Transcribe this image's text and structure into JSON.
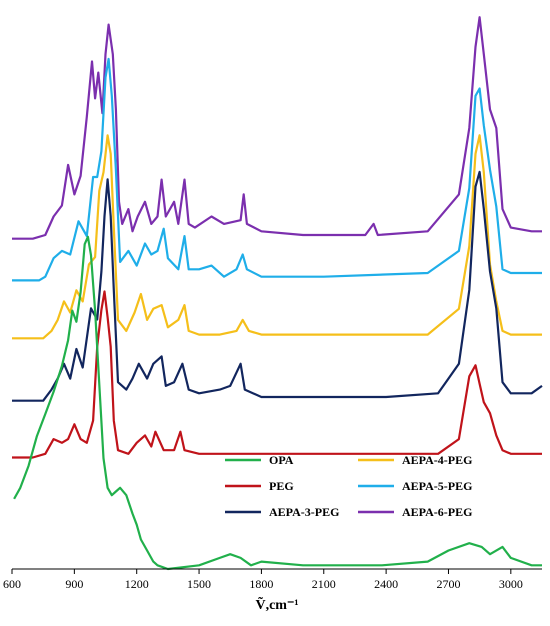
{
  "chart_data": {
    "type": "line",
    "title": "",
    "xlabel": "Ṽ,cm⁻¹",
    "ylabel": "",
    "xlim": [
      600,
      3150
    ],
    "x_ticks": [
      600,
      900,
      1200,
      1500,
      1800,
      2100,
      2400,
      2700,
      3000
    ],
    "y_axis_visible": false,
    "grid": false,
    "stacked_offset": true,
    "legend_position": "bottom-right",
    "legend": [
      {
        "name": "OPA",
        "color": "#21b04b"
      },
      {
        "name": "AEPA-4-PEG",
        "color": "#f5bf1a"
      },
      {
        "name": "PEG",
        "color": "#c0131a"
      },
      {
        "name": "AEPA-5-PEG",
        "color": "#1faee9"
      },
      {
        "name": "AEPA-3-PEG",
        "color": "#12265e"
      },
      {
        "name": "AEPA-6-PEG",
        "color": "#7b2fae"
      }
    ],
    "series": [
      {
        "name": "AEPA-6-PEG",
        "color": "#7b2fae",
        "baseline": 0.895,
        "points": [
          [
            600,
            0
          ],
          [
            700,
            0
          ],
          [
            760,
            0.01
          ],
          [
            800,
            0.06
          ],
          [
            840,
            0.09
          ],
          [
            870,
            0.2
          ],
          [
            900,
            0.12
          ],
          [
            930,
            0.17
          ],
          [
            960,
            0.33
          ],
          [
            985,
            0.48
          ],
          [
            1000,
            0.38
          ],
          [
            1015,
            0.45
          ],
          [
            1035,
            0.34
          ],
          [
            1050,
            0.5
          ],
          [
            1065,
            0.58
          ],
          [
            1085,
            0.5
          ],
          [
            1100,
            0.35
          ],
          [
            1115,
            0.1
          ],
          [
            1130,
            0.04
          ],
          [
            1160,
            0.08
          ],
          [
            1180,
            0.02
          ],
          [
            1205,
            0.06
          ],
          [
            1240,
            0.1
          ],
          [
            1270,
            0.04
          ],
          [
            1300,
            0.06
          ],
          [
            1320,
            0.16
          ],
          [
            1340,
            0.06
          ],
          [
            1380,
            0.1
          ],
          [
            1400,
            0.04
          ],
          [
            1430,
            0.16
          ],
          [
            1450,
            0.04
          ],
          [
            1480,
            0.03
          ],
          [
            1560,
            0.06
          ],
          [
            1620,
            0.04
          ],
          [
            1700,
            0.05
          ],
          [
            1715,
            0.12
          ],
          [
            1730,
            0.04
          ],
          [
            1800,
            0.02
          ],
          [
            2000,
            0.01
          ],
          [
            2300,
            0.01
          ],
          [
            2340,
            0.04
          ],
          [
            2360,
            0.01
          ],
          [
            2600,
            0.02
          ],
          [
            2750,
            0.12
          ],
          [
            2800,
            0.3
          ],
          [
            2830,
            0.52
          ],
          [
            2850,
            0.6
          ],
          [
            2870,
            0.5
          ],
          [
            2900,
            0.35
          ],
          [
            2930,
            0.3
          ],
          [
            2960,
            0.08
          ],
          [
            3000,
            0.03
          ],
          [
            3100,
            0.02
          ],
          [
            3150,
            0.02
          ]
        ]
      },
      {
        "name": "AEPA-5-PEG",
        "color": "#1faee9",
        "baseline": 0.782,
        "points": [
          [
            600,
            0
          ],
          [
            730,
            0
          ],
          [
            760,
            0.01
          ],
          [
            800,
            0.06
          ],
          [
            840,
            0.08
          ],
          [
            880,
            0.07
          ],
          [
            920,
            0.16
          ],
          [
            960,
            0.12
          ],
          [
            990,
            0.28
          ],
          [
            1010,
            0.28
          ],
          [
            1030,
            0.35
          ],
          [
            1050,
            0.55
          ],
          [
            1065,
            0.6
          ],
          [
            1080,
            0.5
          ],
          [
            1100,
            0.3
          ],
          [
            1120,
            0.05
          ],
          [
            1160,
            0.08
          ],
          [
            1200,
            0.04
          ],
          [
            1240,
            0.1
          ],
          [
            1270,
            0.07
          ],
          [
            1300,
            0.08
          ],
          [
            1330,
            0.14
          ],
          [
            1350,
            0.06
          ],
          [
            1400,
            0.03
          ],
          [
            1430,
            0.12
          ],
          [
            1450,
            0.03
          ],
          [
            1500,
            0.03
          ],
          [
            1560,
            0.04
          ],
          [
            1620,
            0.01
          ],
          [
            1680,
            0.03
          ],
          [
            1710,
            0.07
          ],
          [
            1730,
            0.03
          ],
          [
            1800,
            0.01
          ],
          [
            2100,
            0.01
          ],
          [
            2600,
            0.02
          ],
          [
            2750,
            0.08
          ],
          [
            2800,
            0.25
          ],
          [
            2830,
            0.5
          ],
          [
            2850,
            0.52
          ],
          [
            2870,
            0.42
          ],
          [
            2900,
            0.3
          ],
          [
            2930,
            0.2
          ],
          [
            2960,
            0.03
          ],
          [
            3000,
            0.02
          ],
          [
            3100,
            0.02
          ],
          [
            3150,
            0.02
          ]
        ]
      },
      {
        "name": "AEPA-4-PEG",
        "color": "#f5bf1a",
        "baseline": 0.625,
        "points": [
          [
            600,
            0
          ],
          [
            750,
            0
          ],
          [
            790,
            0.02
          ],
          [
            820,
            0.05
          ],
          [
            850,
            0.1
          ],
          [
            880,
            0.07
          ],
          [
            910,
            0.13
          ],
          [
            940,
            0.1
          ],
          [
            970,
            0.2
          ],
          [
            1000,
            0.22
          ],
          [
            1020,
            0.4
          ],
          [
            1040,
            0.45
          ],
          [
            1060,
            0.55
          ],
          [
            1075,
            0.5
          ],
          [
            1090,
            0.3
          ],
          [
            1110,
            0.05
          ],
          [
            1150,
            0.02
          ],
          [
            1190,
            0.07
          ],
          [
            1220,
            0.12
          ],
          [
            1250,
            0.05
          ],
          [
            1280,
            0.08
          ],
          [
            1320,
            0.09
          ],
          [
            1350,
            0.03
          ],
          [
            1400,
            0.05
          ],
          [
            1430,
            0.09
          ],
          [
            1450,
            0.02
          ],
          [
            1500,
            0.01
          ],
          [
            1600,
            0.01
          ],
          [
            1680,
            0.02
          ],
          [
            1710,
            0.05
          ],
          [
            1740,
            0.02
          ],
          [
            1800,
            0.01
          ],
          [
            2000,
            0.01
          ],
          [
            2400,
            0.01
          ],
          [
            2600,
            0.01
          ],
          [
            2750,
            0.08
          ],
          [
            2800,
            0.25
          ],
          [
            2830,
            0.5
          ],
          [
            2850,
            0.55
          ],
          [
            2870,
            0.45
          ],
          [
            2900,
            0.2
          ],
          [
            2930,
            0.1
          ],
          [
            2960,
            0.02
          ],
          [
            3000,
            0.01
          ],
          [
            3150,
            0.01
          ]
        ]
      },
      {
        "name": "AEPA-3-PEG",
        "color": "#12265e",
        "baseline": 0.456,
        "points": [
          [
            600,
            0
          ],
          [
            750,
            0
          ],
          [
            790,
            0.03
          ],
          [
            820,
            0.06
          ],
          [
            850,
            0.1
          ],
          [
            880,
            0.06
          ],
          [
            910,
            0.14
          ],
          [
            940,
            0.09
          ],
          [
            980,
            0.25
          ],
          [
            1010,
            0.22
          ],
          [
            1030,
            0.35
          ],
          [
            1045,
            0.5
          ],
          [
            1060,
            0.6
          ],
          [
            1075,
            0.5
          ],
          [
            1090,
            0.3
          ],
          [
            1110,
            0.05
          ],
          [
            1150,
            0.03
          ],
          [
            1180,
            0.06
          ],
          [
            1210,
            0.1
          ],
          [
            1250,
            0.06
          ],
          [
            1280,
            0.1
          ],
          [
            1320,
            0.12
          ],
          [
            1340,
            0.04
          ],
          [
            1380,
            0.05
          ],
          [
            1420,
            0.1
          ],
          [
            1450,
            0.03
          ],
          [
            1500,
            0.02
          ],
          [
            1600,
            0.03
          ],
          [
            1650,
            0.04
          ],
          [
            1700,
            0.1
          ],
          [
            1720,
            0.03
          ],
          [
            1800,
            0.01
          ],
          [
            2000,
            0.01
          ],
          [
            2400,
            0.01
          ],
          [
            2650,
            0.02
          ],
          [
            2750,
            0.1
          ],
          [
            2800,
            0.3
          ],
          [
            2830,
            0.58
          ],
          [
            2850,
            0.62
          ],
          [
            2870,
            0.52
          ],
          [
            2900,
            0.35
          ],
          [
            2930,
            0.25
          ],
          [
            2960,
            0.05
          ],
          [
            3000,
            0.02
          ],
          [
            3100,
            0.02
          ],
          [
            3150,
            0.04
          ]
        ]
      },
      {
        "name": "PEG",
        "color": "#c0131a",
        "baseline": 0.302,
        "points": [
          [
            600,
            0
          ],
          [
            700,
            0
          ],
          [
            760,
            0.01
          ],
          [
            800,
            0.05
          ],
          [
            840,
            0.04
          ],
          [
            870,
            0.05
          ],
          [
            900,
            0.09
          ],
          [
            930,
            0.05
          ],
          [
            960,
            0.04
          ],
          [
            990,
            0.1
          ],
          [
            1010,
            0.3
          ],
          [
            1030,
            0.4
          ],
          [
            1045,
            0.45
          ],
          [
            1060,
            0.38
          ],
          [
            1075,
            0.3
          ],
          [
            1090,
            0.1
          ],
          [
            1110,
            0.02
          ],
          [
            1160,
            0.01
          ],
          [
            1200,
            0.04
          ],
          [
            1240,
            0.06
          ],
          [
            1270,
            0.03
          ],
          [
            1290,
            0.07
          ],
          [
            1330,
            0.02
          ],
          [
            1380,
            0.02
          ],
          [
            1410,
            0.07
          ],
          [
            1430,
            0.02
          ],
          [
            1500,
            0.01
          ],
          [
            2000,
            0.01
          ],
          [
            2400,
            0.01
          ],
          [
            2650,
            0.01
          ],
          [
            2750,
            0.05
          ],
          [
            2800,
            0.22
          ],
          [
            2830,
            0.25
          ],
          [
            2850,
            0.2
          ],
          [
            2870,
            0.15
          ],
          [
            2900,
            0.12
          ],
          [
            2930,
            0.06
          ],
          [
            2960,
            0.02
          ],
          [
            3000,
            0.01
          ],
          [
            3150,
            0.01
          ]
        ]
      },
      {
        "name": "OPA",
        "color": "#21b04b",
        "baseline": 0.0,
        "points": [
          [
            610,
            0.19
          ],
          [
            640,
            0.22
          ],
          [
            680,
            0.28
          ],
          [
            720,
            0.36
          ],
          [
            760,
            0.42
          ],
          [
            800,
            0.48
          ],
          [
            840,
            0.55
          ],
          [
            870,
            0.62
          ],
          [
            890,
            0.7
          ],
          [
            910,
            0.67
          ],
          [
            930,
            0.75
          ],
          [
            950,
            0.88
          ],
          [
            965,
            0.9
          ],
          [
            980,
            0.85
          ],
          [
            1000,
            0.7
          ],
          [
            1020,
            0.5
          ],
          [
            1040,
            0.3
          ],
          [
            1060,
            0.22
          ],
          [
            1080,
            0.2
          ],
          [
            1100,
            0.21
          ],
          [
            1120,
            0.22
          ],
          [
            1150,
            0.2
          ],
          [
            1180,
            0.15
          ],
          [
            1200,
            0.12
          ],
          [
            1220,
            0.08
          ],
          [
            1250,
            0.05
          ],
          [
            1280,
            0.02
          ],
          [
            1300,
            0.01
          ],
          [
            1350,
            0.0
          ],
          [
            1500,
            0.01
          ],
          [
            1600,
            0.03
          ],
          [
            1650,
            0.04
          ],
          [
            1700,
            0.03
          ],
          [
            1750,
            0.01
          ],
          [
            1800,
            0.02
          ],
          [
            2000,
            0.01
          ],
          [
            2300,
            0.01
          ],
          [
            2380,
            0.01
          ],
          [
            2600,
            0.02
          ],
          [
            2700,
            0.05
          ],
          [
            2800,
            0.07
          ],
          [
            2860,
            0.06
          ],
          [
            2900,
            0.04
          ],
          [
            2960,
            0.06
          ],
          [
            3000,
            0.03
          ],
          [
            3100,
            0.01
          ],
          [
            3150,
            0.01
          ]
        ]
      }
    ]
  }
}
